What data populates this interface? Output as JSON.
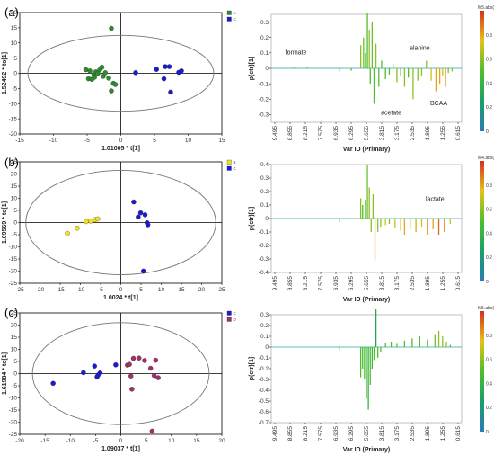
{
  "panel_labels": [
    "(a)",
    "(b)",
    "(c)"
  ],
  "chart_data": [
    {
      "type": "scatter",
      "panel": "(a)",
      "xlabel": "1.01005 * t[1]",
      "ylabel": "1.52492 * to[1]",
      "xlim": [
        -15,
        15
      ],
      "ylim": [
        -20,
        20
      ],
      "xticks": [
        -15,
        -10,
        -5,
        0,
        5,
        10,
        15
      ],
      "yticks": [
        -20,
        -15,
        -10,
        -5,
        0,
        5,
        10,
        15,
        20
      ],
      "ellipse": {
        "rx": 13.8,
        "ry": 12.5
      },
      "legend": [
        {
          "name": "A",
          "color": "#2e8b2e"
        },
        {
          "name": "C",
          "color": "#1a1ad0"
        }
      ],
      "series": [
        {
          "name": "A",
          "color": "#2e8b2e",
          "points": [
            [
              -1.4,
              14.8
            ],
            [
              -5.2,
              1.2
            ],
            [
              -4.8,
              -1.8
            ],
            [
              -4.6,
              0.8
            ],
            [
              -4.3,
              -2.0
            ],
            [
              -4.0,
              -0.3
            ],
            [
              -3.7,
              0.5
            ],
            [
              -3.4,
              0.0
            ],
            [
              -3.1,
              1.2
            ],
            [
              -2.8,
              2.0
            ],
            [
              -2.6,
              -1.0
            ],
            [
              -2.3,
              0.2
            ],
            [
              -1.8,
              -1.6
            ],
            [
              -1.4,
              -5.8
            ],
            [
              -1.1,
              -3.3
            ],
            [
              -0.8,
              -3.7
            ],
            [
              -3.9,
              -1.3
            ]
          ]
        },
        {
          "name": "C",
          "color": "#1a1ad0",
          "points": [
            [
              2.2,
              0.2
            ],
            [
              5.3,
              1.3
            ],
            [
              6.6,
              2.2
            ],
            [
              7.2,
              2.2
            ],
            [
              6.4,
              -1.8
            ],
            [
              7.4,
              -6.2
            ],
            [
              8.6,
              0.3
            ],
            [
              9.0,
              0.8
            ]
          ]
        }
      ]
    },
    {
      "type": "scatter",
      "panel": "(b)",
      "xlabel": "1.0024 * t[1]",
      "ylabel": "1.09569 * to[1]",
      "xlim": [
        -25,
        25
      ],
      "ylim": [
        -25,
        25
      ],
      "xticks": [
        -25,
        -20,
        -15,
        -10,
        -5,
        0,
        5,
        10,
        15,
        20,
        25
      ],
      "yticks": [
        -25,
        -20,
        -15,
        -10,
        -5,
        0,
        5,
        10,
        15,
        20,
        25
      ],
      "ellipse": {
        "rx": 23.5,
        "ry": 21.5
      },
      "legend": [
        {
          "name": "B",
          "color": "#f0e020"
        },
        {
          "name": "C",
          "color": "#1a1ad0"
        }
      ],
      "series": [
        {
          "name": "B",
          "color": "#f0e020",
          "points": [
            [
              -13.2,
              -4.5
            ],
            [
              -10.8,
              -2.3
            ],
            [
              -7.5,
              0.6
            ],
            [
              -6.4,
              1.2
            ],
            [
              -5.7,
              1.5
            ],
            [
              -8.6,
              0.4
            ]
          ]
        },
        {
          "name": "C",
          "color": "#1a1ad0",
          "points": [
            [
              3.2,
              8.5
            ],
            [
              4.9,
              4.0
            ],
            [
              6.0,
              3.2
            ],
            [
              4.3,
              2.3
            ],
            [
              6.5,
              -0.1
            ],
            [
              6.7,
              -0.9
            ],
            [
              5.6,
              -20.0
            ]
          ]
        }
      ]
    },
    {
      "type": "scatter",
      "panel": "(c)",
      "xlabel": "1.09037 * t[1]",
      "ylabel": "1.61984 * to[1]",
      "xlim": [
        -20,
        20
      ],
      "ylim": [
        -25,
        25
      ],
      "xticks": [
        -20,
        -15,
        -10,
        -5,
        0,
        5,
        10,
        15,
        20
      ],
      "yticks": [
        -25,
        -20,
        -15,
        -10,
        -5,
        0,
        5,
        10,
        15,
        20,
        25
      ],
      "ellipse": {
        "rx": 17.5,
        "ry": 21
      },
      "legend": [
        {
          "name": "C",
          "color": "#1a1ad0"
        },
        {
          "name": "D",
          "color": "#a0306a"
        }
      ],
      "series": [
        {
          "name": "C",
          "color": "#1a1ad0",
          "points": [
            [
              -13.4,
              -4.0
            ],
            [
              -7.4,
              0.4
            ],
            [
              -5.2,
              3.1
            ],
            [
              -4.5,
              -0.6
            ],
            [
              -4.7,
              -1.3
            ],
            [
              -4.1,
              0.3
            ],
            [
              -1.0,
              3.6
            ]
          ]
        },
        {
          "name": "D",
          "color": "#a0306a",
          "points": [
            [
              1.3,
              3.5
            ],
            [
              1.7,
              3.8
            ],
            [
              2.0,
              -1.0
            ],
            [
              2.5,
              6.3
            ],
            [
              2.2,
              -6.4
            ],
            [
              3.6,
              6.4
            ],
            [
              4.7,
              5.4
            ],
            [
              5.9,
              2.2
            ],
            [
              6.2,
              -23.7
            ],
            [
              6.9,
              5.5
            ],
            [
              7.4,
              -1.7
            ],
            [
              6.6,
              -0.8
            ]
          ]
        }
      ]
    },
    {
      "type": "bar",
      "panel": "(a) loadings",
      "xlabel": "Var ID (Primary)",
      "ylabel": "p(ctr)[1]",
      "ylim": [
        -0.35,
        0.35
      ],
      "yticks": [
        -0.3,
        -0.2,
        -0.1,
        0,
        0.1,
        0.2,
        0.3
      ],
      "xticks": [
        "9.495",
        "8.855",
        "8.215",
        "7.575",
        "6.935",
        "6.295",
        "5.655",
        "3.815",
        "3.175",
        "2.535",
        "1.895",
        "1.255",
        "0.615"
      ],
      "colorbar_title": "M5.abs(p(corr))[1]",
      "colorbar_ticks": [
        "0",
        "0.2",
        "0.4",
        "0.6",
        "0.8"
      ],
      "annotations": [
        {
          "text": "formate",
          "x": 0.13,
          "y": 0.09
        },
        {
          "text": "alanine",
          "x": 0.78,
          "y": 0.12
        },
        {
          "text": "acetate",
          "x": 0.63,
          "y": -0.3
        },
        {
          "text": "BCAA",
          "x": 0.88,
          "y": -0.24
        }
      ],
      "peaks": [
        [
          0.08,
          0.005,
          0.7
        ],
        [
          0.12,
          0.01,
          0.6
        ],
        [
          0.19,
          0.008,
          0.5
        ],
        [
          0.36,
          -0.02,
          0.5
        ],
        [
          0.42,
          -0.015,
          0.5
        ],
        [
          0.47,
          0.15,
          0.6
        ],
        [
          0.485,
          0.2,
          0.55
        ],
        [
          0.495,
          0.1,
          0.5
        ],
        [
          0.505,
          0.36,
          0.5
        ],
        [
          0.515,
          0.25,
          0.6
        ],
        [
          0.52,
          -0.1,
          0.5
        ],
        [
          0.53,
          0.3,
          0.55
        ],
        [
          0.54,
          -0.23,
          0.5
        ],
        [
          0.55,
          0.16,
          0.6
        ],
        [
          0.565,
          -0.12,
          0.5
        ],
        [
          0.58,
          0.05,
          0.5
        ],
        [
          0.6,
          -0.07,
          0.5
        ],
        [
          0.62,
          -0.04,
          0.5
        ],
        [
          0.64,
          0.03,
          0.5
        ],
        [
          0.66,
          -0.09,
          0.6
        ],
        [
          0.68,
          -0.05,
          0.5
        ],
        [
          0.7,
          -0.12,
          0.6
        ],
        [
          0.72,
          -0.06,
          0.5
        ],
        [
          0.745,
          -0.2,
          0.6
        ],
        [
          0.77,
          -0.08,
          0.6
        ],
        [
          0.79,
          -0.05,
          0.6
        ],
        [
          0.815,
          0.05,
          0.6
        ],
        [
          0.84,
          -0.08,
          0.7
        ],
        [
          0.865,
          -0.15,
          0.8
        ],
        [
          0.885,
          -0.1,
          0.8
        ],
        [
          0.9,
          -0.05,
          0.7
        ],
        [
          0.915,
          -0.12,
          0.85
        ],
        [
          0.93,
          -0.03,
          0.6
        ],
        [
          0.95,
          -0.02,
          0.6
        ]
      ]
    },
    {
      "type": "bar",
      "panel": "(b) loadings",
      "xlabel": "Var ID (Primary)",
      "ylabel": "p(ctr)[1]",
      "ylim": [
        -0.4,
        0.4
      ],
      "yticks": [
        -0.4,
        -0.3,
        -0.2,
        -0.1,
        0,
        0.1,
        0.2,
        0.3,
        0.4
      ],
      "xticks": [
        "9.495",
        "8.855",
        "8.215",
        "7.575",
        "6.935",
        "6.295",
        "5.655",
        "3.815",
        "3.175",
        "2.535",
        "1.895",
        "1.255",
        "0.615"
      ],
      "colorbar_title": "M4.abs(p(corr))[1]",
      "colorbar_ticks": [
        "0",
        "0.2",
        "0.4",
        "0.6",
        "0.8"
      ],
      "annotations": [
        {
          "text": "lactate",
          "x": 0.86,
          "y": 0.13
        }
      ],
      "peaks": [
        [
          0.36,
          -0.03,
          0.5
        ],
        [
          0.47,
          0.15,
          0.6
        ],
        [
          0.48,
          0.1,
          0.5
        ],
        [
          0.495,
          0.14,
          0.5
        ],
        [
          0.505,
          0.4,
          0.55
        ],
        [
          0.515,
          0.23,
          0.6
        ],
        [
          0.525,
          -0.1,
          0.6
        ],
        [
          0.535,
          0.18,
          0.6
        ],
        [
          0.545,
          -0.31,
          0.8
        ],
        [
          0.56,
          -0.1,
          0.6
        ],
        [
          0.575,
          -0.06,
          0.6
        ],
        [
          0.6,
          -0.05,
          0.7
        ],
        [
          0.62,
          -0.04,
          0.6
        ],
        [
          0.65,
          -0.07,
          0.7
        ],
        [
          0.68,
          -0.09,
          0.8
        ],
        [
          0.7,
          -0.12,
          0.8
        ],
        [
          0.73,
          -0.08,
          0.7
        ],
        [
          0.76,
          -0.1,
          0.8
        ],
        [
          0.79,
          -0.06,
          0.7
        ],
        [
          0.82,
          -0.12,
          0.85
        ],
        [
          0.85,
          -0.08,
          0.8
        ],
        [
          0.88,
          -0.12,
          0.9
        ],
        [
          0.91,
          -0.1,
          0.9
        ],
        [
          0.94,
          -0.04,
          0.7
        ]
      ]
    },
    {
      "type": "bar",
      "panel": "(c) loadings",
      "xlabel": "Var ID (Primary)",
      "ylabel": "p(ctr)[1]",
      "ylim": [
        -0.7,
        0.3
      ],
      "yticks": [
        -0.7,
        -0.6,
        -0.5,
        -0.4,
        -0.3,
        -0.2,
        -0.1,
        0,
        0.1,
        0.2,
        0.3
      ],
      "xticks": [
        "9.495",
        "8.855",
        "8.215",
        "7.575",
        "6.935",
        "6.295",
        "5.655",
        "3.815",
        "3.175",
        "2.535",
        "1.895",
        "1.255",
        "0.615"
      ],
      "colorbar_title": "M5.abs(p(corr))[1]",
      "colorbar_ticks": [
        "0",
        "0.2",
        "0.4",
        "0.6",
        "0.8"
      ],
      "annotations": [],
      "peaks": [
        [
          0.36,
          -0.03,
          0.5
        ],
        [
          0.47,
          -0.28,
          0.5
        ],
        [
          0.48,
          -0.2,
          0.45
        ],
        [
          0.49,
          -0.3,
          0.5
        ],
        [
          0.5,
          -0.48,
          0.45
        ],
        [
          0.51,
          -0.58,
          0.4
        ],
        [
          0.52,
          -0.35,
          0.5
        ],
        [
          0.53,
          -0.2,
          0.45
        ],
        [
          0.54,
          -0.12,
          0.5
        ],
        [
          0.55,
          0.35,
          0.3
        ],
        [
          0.56,
          -0.1,
          0.5
        ],
        [
          0.575,
          -0.05,
          0.5
        ],
        [
          0.6,
          0.04,
          0.5
        ],
        [
          0.63,
          0.05,
          0.5
        ],
        [
          0.66,
          0.03,
          0.5
        ],
        [
          0.7,
          0.06,
          0.5
        ],
        [
          0.74,
          0.08,
          0.5
        ],
        [
          0.78,
          0.1,
          0.5
        ],
        [
          0.82,
          0.07,
          0.5
        ],
        [
          0.86,
          0.12,
          0.55
        ],
        [
          0.88,
          0.15,
          0.6
        ],
        [
          0.9,
          0.1,
          0.6
        ],
        [
          0.92,
          0.05,
          0.6
        ],
        [
          0.94,
          0.02,
          0.5
        ]
      ]
    }
  ]
}
